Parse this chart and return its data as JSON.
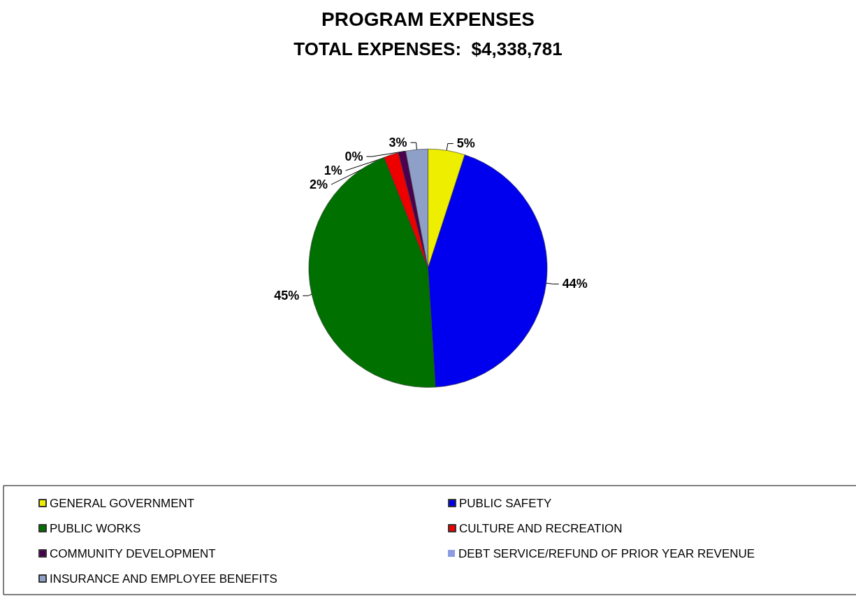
{
  "chart_data": {
    "type": "pie",
    "title": "PROGRAM EXPENSES",
    "subtitle": "TOTAL EXPENSES:  $4,338,781",
    "categories": [
      "GENERAL GOVERNMENT",
      "PUBLIC SAFETY",
      "PUBLIC WORKS",
      "CULTURE AND RECREATION",
      "COMMUNITY DEVELOPMENT",
      "DEBT SERVICE/REFUND OF PRIOR YEAR REVENUE",
      "INSURANCE AND EMPLOYEE BENEFITS"
    ],
    "values": [
      5,
      44,
      45,
      2,
      1,
      0,
      3
    ],
    "value_labels": [
      "5%",
      "44%",
      "45%",
      "2%",
      "1%",
      "0%",
      "3%"
    ],
    "colors": [
      "#eeee00",
      "#0000ee",
      "#007000",
      "#ee0000",
      "#4b0050",
      "#8c9ce0",
      "#8ea0c8"
    ],
    "legend": "bottom"
  }
}
